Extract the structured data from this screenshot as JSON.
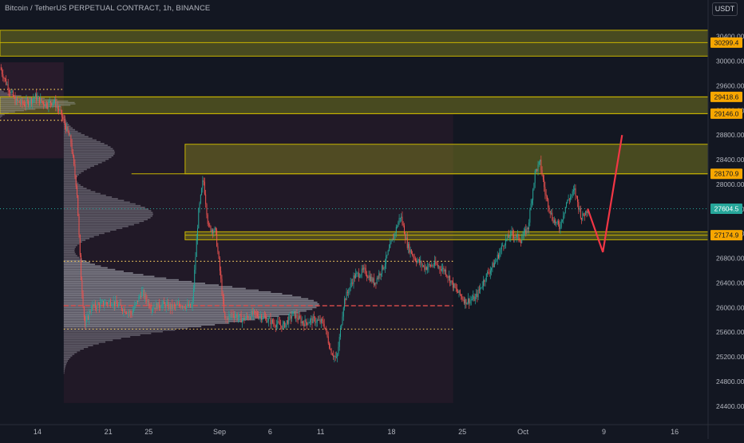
{
  "header": {
    "title": "Bitcoin / TetherUS PERPETUAL CONTRACT, 1h, BINANCE",
    "currency": "USDT"
  },
  "colors": {
    "background": "#131722",
    "up": "#26a69a",
    "down": "#ef5350",
    "zone": "#8a8a1e",
    "zone_border": "#c8b400",
    "price_tag": "#f7a600",
    "current_price": "#26a69a",
    "profile": "#b2b5be",
    "projection": "#f23645"
  },
  "chart_data": {
    "type": "candlestick",
    "title": "Bitcoin / TetherUS PERPETUAL CONTRACT, 1h, BINANCE",
    "ylim": [
      24100,
      30680
    ],
    "xlim": [
      0,
      70
    ],
    "y_ticks": [
      30400,
      30000,
      29600,
      29200,
      28800,
      28400,
      28000,
      27600,
      27200,
      26800,
      26400,
      26000,
      25600,
      25200,
      24800,
      24400
    ],
    "x_ticks": [
      {
        "label": "14",
        "day": 3.7
      },
      {
        "label": "21",
        "day": 10.7
      },
      {
        "label": "25",
        "day": 14.7
      },
      {
        "label": "Sep",
        "day": 21.7
      },
      {
        "label": "6",
        "day": 26.7
      },
      {
        "label": "11",
        "day": 31.7
      },
      {
        "label": "18",
        "day": 38.7
      },
      {
        "label": "25",
        "day": 45.7
      },
      {
        "label": "Oct",
        "day": 51.7
      },
      {
        "label": "9",
        "day": 59.7
      },
      {
        "label": "16",
        "day": 66.7
      }
    ],
    "price_path": [
      [
        0,
        29900
      ],
      [
        0.6,
        29650
      ],
      [
        1.5,
        29350
      ],
      [
        2.5,
        29300
      ],
      [
        3.5,
        29420
      ],
      [
        4.5,
        29300
      ],
      [
        5.3,
        29350
      ],
      [
        6,
        29150
      ],
      [
        7,
        28700
      ],
      [
        7.6,
        27900
      ],
      [
        8,
        26500
      ],
      [
        8.4,
        25700
      ],
      [
        9,
        26000
      ],
      [
        10,
        26050
      ],
      [
        11,
        26100
      ],
      [
        12,
        26000
      ],
      [
        13,
        25900
      ],
      [
        14,
        26250
      ],
      [
        15,
        26000
      ],
      [
        16,
        26050
      ],
      [
        17,
        26000
      ],
      [
        18,
        26050
      ],
      [
        19,
        26000
      ],
      [
        19.6,
        27500
      ],
      [
        20.1,
        28100
      ],
      [
        20.6,
        27300
      ],
      [
        21.3,
        27250
      ],
      [
        21.8,
        26500
      ],
      [
        22.2,
        25800
      ],
      [
        23,
        25900
      ],
      [
        24,
        25800
      ],
      [
        25,
        25900
      ],
      [
        26,
        25850
      ],
      [
        27,
        25750
      ],
      [
        28,
        25700
      ],
      [
        29,
        25900
      ],
      [
        30,
        25750
      ],
      [
        31,
        25800
      ],
      [
        32,
        25750
      ],
      [
        32.7,
        25300
      ],
      [
        33.3,
        25150
      ],
      [
        34,
        26100
      ],
      [
        35,
        26500
      ],
      [
        36,
        26600
      ],
      [
        37,
        26400
      ],
      [
        38,
        26700
      ],
      [
        39,
        27200
      ],
      [
        39.6,
        27500
      ],
      [
        40.3,
        27000
      ],
      [
        41,
        26800
      ],
      [
        42,
        26650
      ],
      [
        43,
        26700
      ],
      [
        44,
        26600
      ],
      [
        45,
        26300
      ],
      [
        46,
        26100
      ],
      [
        47,
        26150
      ],
      [
        48,
        26500
      ],
      [
        49,
        26750
      ],
      [
        49.8,
        27050
      ],
      [
        50.6,
        27200
      ],
      [
        51.5,
        27100
      ],
      [
        52.2,
        27300
      ],
      [
        52.9,
        28200
      ],
      [
        53.4,
        28350
      ],
      [
        53.9,
        27850
      ],
      [
        54.6,
        27450
      ],
      [
        55.3,
        27300
      ],
      [
        56,
        27700
      ],
      [
        56.8,
        27900
      ],
      [
        57.5,
        27450
      ],
      [
        58.1,
        27604.5
      ]
    ],
    "price_zones": [
      {
        "low": 30080,
        "high": 30500,
        "from_day": 0,
        "to_day": 70
      },
      {
        "low": 29146,
        "high": 29418.6,
        "from_day": 0,
        "to_day": 70
      },
      {
        "low": 28170.9,
        "high": 28650,
        "from_day": 18.3,
        "to_day": 70
      },
      {
        "low": 27100,
        "high": 27230,
        "from_day": 18.3,
        "to_day": 70
      }
    ],
    "horizontal_levels": [
      {
        "price": 28170.9,
        "style": "solid",
        "from_day": 13
      },
      {
        "price": 30299.4,
        "style": "solid",
        "from_day": 0
      },
      {
        "price": 29418.6,
        "style": "solid",
        "from_day": 0
      },
      {
        "price": 29146,
        "style": "solid",
        "from_day": 0
      },
      {
        "price": 27174.9,
        "style": "solid",
        "from_day": 18.3
      },
      {
        "price": 27604.5,
        "style": "dotted",
        "from_day": 0
      }
    ],
    "volume_profile": {
      "poc_price": 26030,
      "value_area_high": 26750,
      "value_area_low": 25650
    },
    "price_labels": [
      {
        "price": 30299.4,
        "text": "30299.4",
        "kind": "level"
      },
      {
        "price": 29418.6,
        "text": "29418.6",
        "kind": "level"
      },
      {
        "price": 29146,
        "text": "29146.0",
        "kind": "level"
      },
      {
        "price": 28170.9,
        "text": "28170.9",
        "kind": "level"
      },
      {
        "price": 27604.5,
        "text": "27604.5",
        "kind": "current"
      },
      {
        "price": 27174.9,
        "text": "27174.9",
        "kind": "level"
      }
    ],
    "projection": [
      [
        58.1,
        27604.5
      ],
      [
        59.6,
        26900
      ],
      [
        61.5,
        28800
      ]
    ],
    "grid": false
  }
}
